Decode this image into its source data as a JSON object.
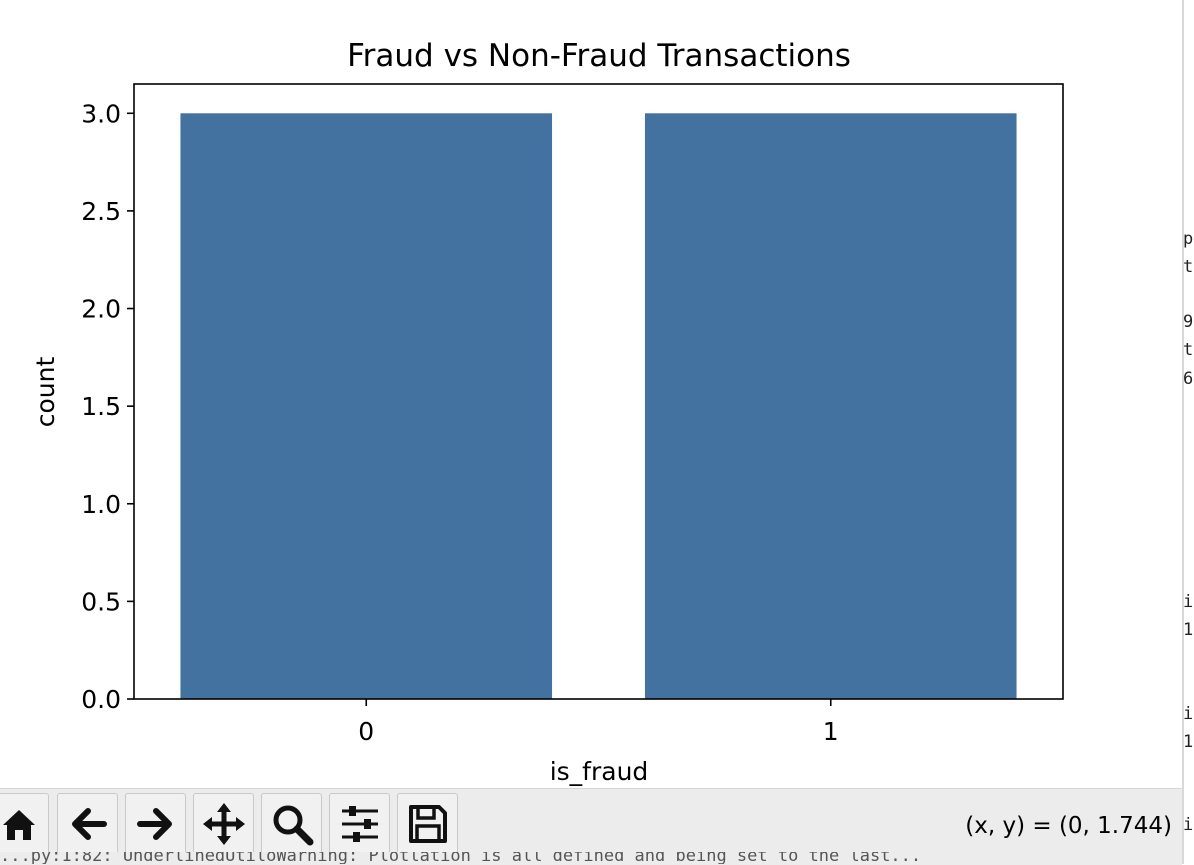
{
  "chart_data": {
    "type": "bar",
    "title": "Fraud vs Non-Fraud Transactions",
    "xlabel": "is_fraud",
    "ylabel": "count",
    "categories": [
      "0",
      "1"
    ],
    "values": [
      3,
      3
    ],
    "ylim": [
      0,
      3.15
    ],
    "yticks": [
      "0.0",
      "0.5",
      "1.0",
      "1.5",
      "2.0",
      "2.5",
      "3.0"
    ],
    "bar_color": "#4472a0",
    "grid": false,
    "legend": null
  },
  "toolbar": {
    "buttons": [
      {
        "name": "home-icon",
        "label": "Home"
      },
      {
        "name": "back-icon",
        "label": "Back"
      },
      {
        "name": "forward-icon",
        "label": "Forward"
      },
      {
        "name": "pan-icon",
        "label": "Pan"
      },
      {
        "name": "zoom-icon",
        "label": "Zoom"
      },
      {
        "name": "configure-subplots-icon",
        "label": "Configure subplots"
      },
      {
        "name": "save-icon",
        "label": "Save"
      }
    ],
    "coordinates": "(x, y) = (0, 1.744)"
  },
  "terminal": {
    "lines": [
      "p",
      "t",
      "9",
      "t",
      "6",
      "i",
      "1",
      "i",
      "1",
      "i"
    ],
    "bottom_line": "...py:1:82: UnderlinedUtiloWarning: Plotlation is all defined and being set to the last..."
  }
}
